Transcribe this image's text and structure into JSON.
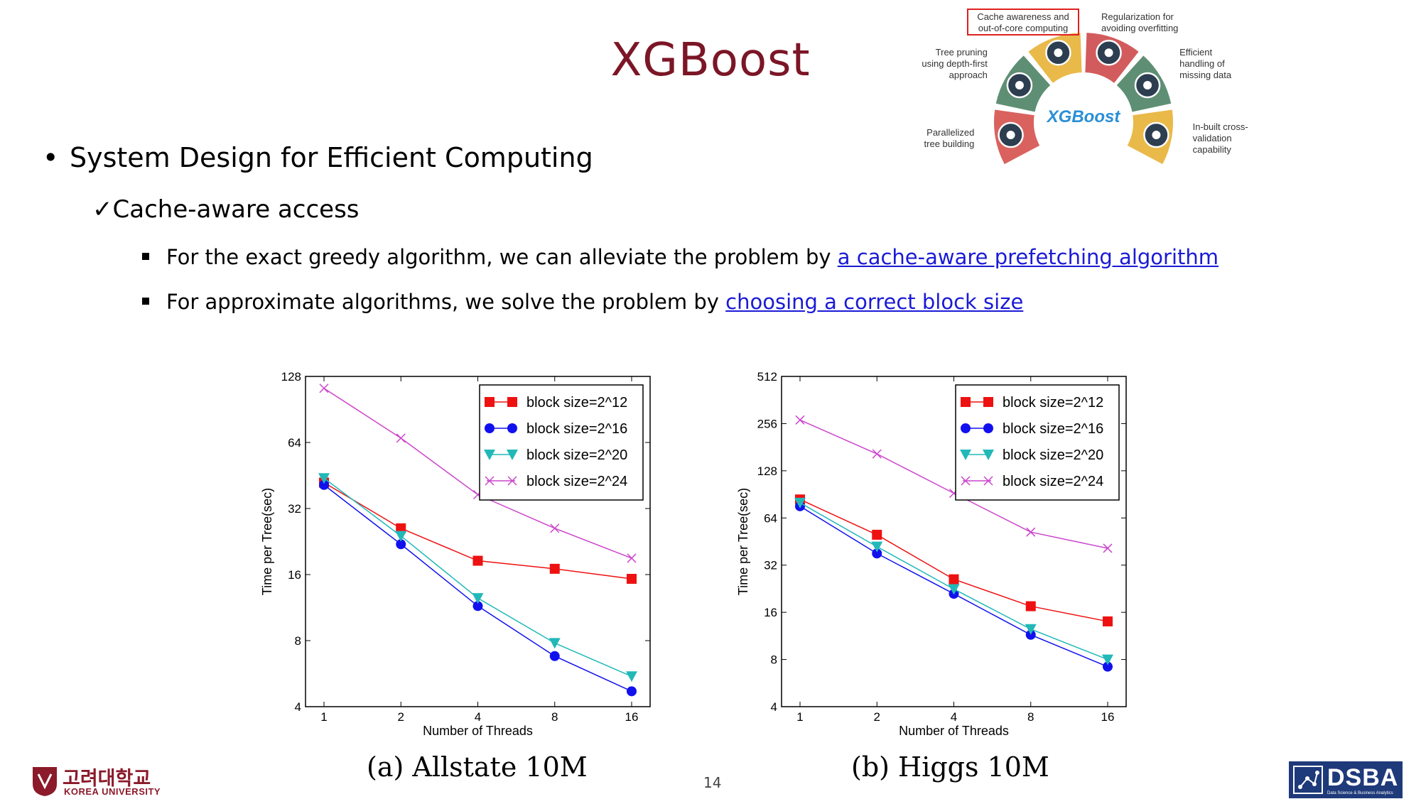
{
  "slide": {
    "title": "XGBoost",
    "bullet1": "System Design for Efficient Computing",
    "check_mark": "✓",
    "bullet2": "Cache-aware access",
    "bullet3_text": "For the exact greedy algorithm, we can alleviate the problem by ",
    "bullet3_link": "a cache-aware prefetching algorithm",
    "bullet4_text": "For approximate algorithms, we solve the problem by ",
    "bullet4_link": "choosing a correct block size",
    "page_number": "14",
    "link_color": "#1a1ad6",
    "title_color": "#7b1626"
  },
  "xgboost_diagram": {
    "center_label": "XGBoost",
    "segments": [
      {
        "label": "Parallelized tree building",
        "lines": [
          "Parallelized",
          "tree building"
        ],
        "color": "#d9625f",
        "icon": "monitor-icon"
      },
      {
        "label": "Tree pruning using depth-first approach",
        "lines": [
          "Tree pruning",
          "using depth-first",
          "approach"
        ],
        "color": "#5e8f74",
        "icon": "leaf-icon"
      },
      {
        "label": "Cache awareness and out-of-core computing",
        "lines": [
          "Cache  awareness and",
          "out-of-core computing"
        ],
        "color": "#e9b94a",
        "icon": "chip-icon",
        "highlighted": true
      },
      {
        "label": "Regularization for avoiding overfitting",
        "lines": [
          "Regularization for",
          "avoiding overfitting"
        ],
        "color": "#d25c5d",
        "icon": "gavel-icon"
      },
      {
        "label": "Efficient handling of missing data",
        "lines": [
          "Efficient",
          "handling of",
          "missing data"
        ],
        "color": "#5e8f74",
        "icon": "question-icon"
      },
      {
        "label": "In-built cross-validation capability",
        "lines": [
          "In-built cross-",
          "validation",
          "capability"
        ],
        "color": "#e9b94a",
        "icon": "check-icon"
      }
    ]
  },
  "logos": {
    "korea_univ_kr": "고려대학교",
    "korea_univ_en": "KOREA UNIVERSITY",
    "dsba": "DSBA",
    "dsba_sub": "Data Science & Business Analytics"
  },
  "chart_data": [
    {
      "type": "line",
      "caption": "(a) Allstate 10M",
      "xlabel": "Number of Threads",
      "ylabel": "Time per Tree(sec)",
      "x": [
        1,
        2,
        4,
        8,
        16
      ],
      "x_tick_labels": [
        "1",
        "2",
        "4",
        "8",
        "16"
      ],
      "y_scale": "log2",
      "ylim": [
        4,
        128
      ],
      "y_ticks": [
        4,
        8,
        16,
        32,
        64,
        128
      ],
      "legend_position": "top-right",
      "grid": false,
      "series": [
        {
          "name": "block size=2^12",
          "marker": "square",
          "color": "#ee1111",
          "values": [
            42,
            26,
            18.5,
            17,
            15.3
          ]
        },
        {
          "name": "block size=2^16",
          "marker": "circle",
          "color": "#1111ee",
          "values": [
            41,
            22,
            11.5,
            6.8,
            4.7
          ]
        },
        {
          "name": "block size=2^20",
          "marker": "triangle-down",
          "color": "#22b8b8",
          "values": [
            44,
            24,
            12.5,
            7.8,
            5.5
          ]
        },
        {
          "name": "block size=2^24",
          "marker": "x",
          "color": "#cc44cc",
          "values": [
            113,
            67,
            37,
            26,
            19
          ]
        }
      ]
    },
    {
      "type": "line",
      "caption": "(b) Higgs 10M",
      "xlabel": "Number of Threads",
      "ylabel": "Time per Tree(sec)",
      "x": [
        1,
        2,
        4,
        8,
        16
      ],
      "x_tick_labels": [
        "1",
        "2",
        "4",
        "8",
        "16"
      ],
      "y_scale": "log2",
      "ylim": [
        4,
        512
      ],
      "y_ticks": [
        4,
        8,
        16,
        32,
        64,
        128,
        256,
        512
      ],
      "legend_position": "top-right",
      "grid": false,
      "series": [
        {
          "name": "block size=2^12",
          "marker": "square",
          "color": "#ee1111",
          "values": [
            84,
            50,
            26,
            17.5,
            14
          ]
        },
        {
          "name": "block size=2^16",
          "marker": "circle",
          "color": "#1111ee",
          "values": [
            76,
            38,
            21,
            11.5,
            7.2
          ]
        },
        {
          "name": "block size=2^20",
          "marker": "triangle-down",
          "color": "#22b8b8",
          "values": [
            80,
            42,
            22.5,
            12.5,
            8
          ]
        },
        {
          "name": "block size=2^24",
          "marker": "x",
          "color": "#cc44cc",
          "values": [
            270,
            164,
            92,
            52,
            41
          ]
        }
      ]
    }
  ]
}
